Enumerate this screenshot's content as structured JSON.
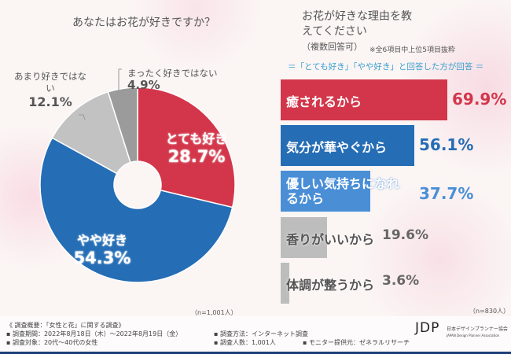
{
  "colors": {
    "very": "#d3364a",
    "somewhat": "#256db5",
    "not_much": "#c2c2c2",
    "not_at_all": "#9b9b9b",
    "reason3": "#4a8fd6",
    "reason_gray": "#bdbdbd",
    "accent": "#3aa0d0"
  },
  "chart_data": [
    {
      "type": "pie",
      "title": "あなたはお花が好きですか？",
      "donut": true,
      "categories": [
        "とても好き",
        "やや好き",
        "あまり好きではない",
        "まったく好きではない"
      ],
      "values": [
        28.7,
        54.3,
        12.1,
        4.9
      ],
      "value_labels": [
        "28.7%",
        "54.3%",
        "12.1%",
        "4.9%"
      ],
      "note": "（n=1,001人）"
    },
    {
      "type": "bar",
      "orientation": "horizontal",
      "title": "お花が好きな理由を教えてください",
      "title_suffix": "（複数回答可）",
      "note1": "※全6項目中上位5項目抜粋",
      "subtitle": "＝「とても好き」「やや好き」と回答した方が回答 ＝",
      "categories": [
        "癒されるから",
        "気分が華やぐから",
        "優しい気持ちになれるから",
        "香りがいいから",
        "体調が整うから"
      ],
      "values": [
        69.9,
        56.1,
        37.7,
        19.6,
        3.6
      ],
      "value_labels": [
        "69.9%",
        "56.1%",
        "37.7%",
        "19.6%",
        "3.6%"
      ],
      "note": "（n=830人）"
    }
  ],
  "footer": {
    "line1": "《 調査概要：「女性と花」に関する調査》",
    "period": "▪ 調査期間：2022年8月18日（木）～2022年8月19日（金）",
    "method": "▪ 調査方法：インターネット調査",
    "target": "▪ 調査対象：20代～40代の女性",
    "count": "▪ 調査人数：1,001人",
    "monitor": "▪ モニター提供元：ゼネラルリサーチ",
    "logo": "JDP",
    "logo_jp": "日本デザインプランナー協会",
    "logo_en": "JAPAN Design Planner Association"
  }
}
